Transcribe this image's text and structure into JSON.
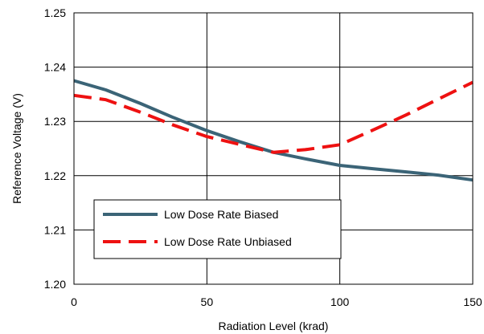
{
  "chart_data": {
    "type": "line",
    "title": "",
    "xlabel": "Radiation Level (krad)",
    "ylabel": "Reference Voltage (V)",
    "xlim": [
      0,
      150
    ],
    "ylim": [
      1.2,
      1.25
    ],
    "xticks": [
      0,
      50,
      100,
      150
    ],
    "xtick_labels": [
      "0",
      "50",
      "100",
      "150"
    ],
    "yticks": [
      1.2,
      1.21,
      1.22,
      1.23,
      1.24,
      1.25
    ],
    "ytick_labels": [
      "1.20",
      "1.21",
      "1.22",
      "1.23",
      "1.24",
      "1.25"
    ],
    "grid": true,
    "legend_position": "lower-left",
    "series": [
      {
        "name": "Low Dose Rate Biased",
        "color": "#3b6477",
        "style": "solid",
        "x": [
          0,
          12,
          25,
          37,
          50,
          62,
          75,
          87,
          100,
          112,
          125,
          137,
          150
        ],
        "y": [
          1.2375,
          1.2358,
          1.2333,
          1.2308,
          1.2283,
          1.2263,
          1.2243,
          1.2231,
          1.2219,
          1.2213,
          1.2207,
          1.2201,
          1.2192
        ]
      },
      {
        "name": "Low Dose Rate Unbiased",
        "color": "#ee1111",
        "style": "dashed",
        "x": [
          0,
          12,
          25,
          37,
          50,
          62,
          75,
          87,
          100,
          112,
          125,
          137,
          150
        ],
        "y": [
          1.2348,
          1.234,
          1.2317,
          1.2294,
          1.2272,
          1.2258,
          1.2243,
          1.2248,
          1.2257,
          1.2283,
          1.2312,
          1.2341,
          1.2372
        ]
      }
    ]
  }
}
